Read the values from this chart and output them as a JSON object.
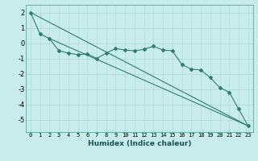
{
  "xlabel": "Humidex (Indice chaleur)",
  "ylabel": "",
  "xlim": [
    -0.5,
    23.5
  ],
  "ylim": [
    -5.8,
    2.5
  ],
  "yticks": [
    2,
    1,
    0,
    -1,
    -2,
    -3,
    -4,
    -5
  ],
  "xtick_labels": [
    "0",
    "1",
    "2",
    "3",
    "4",
    "5",
    "6",
    "7",
    "8",
    "9",
    "10",
    "11",
    "12",
    "13",
    "14",
    "15",
    "16",
    "17",
    "18",
    "19",
    "20",
    "21",
    "22",
    "23"
  ],
  "background_color": "#c8ecec",
  "grid_color": "#b0d8d8",
  "line_color": "#2e7d6e",
  "line1_x": [
    0,
    1,
    2,
    3,
    4,
    5,
    6,
    7,
    8,
    9,
    10,
    11,
    12,
    13,
    14,
    15,
    16,
    17,
    18,
    19,
    20,
    21,
    22,
    23
  ],
  "line1_y": [
    2.0,
    0.6,
    0.3,
    -0.5,
    -0.65,
    -0.75,
    -0.7,
    -1.0,
    -0.65,
    -0.35,
    -0.45,
    -0.5,
    -0.4,
    -0.2,
    -0.45,
    -0.5,
    -1.4,
    -1.7,
    -1.75,
    -2.25,
    -2.9,
    -3.2,
    -4.3,
    -5.4
  ],
  "line2_x": [
    0,
    23
  ],
  "line2_y": [
    2.0,
    -5.4
  ],
  "line3_x": [
    2,
    23
  ],
  "line3_y": [
    0.3,
    -5.4
  ],
  "xlabel_fontsize": 6.5,
  "xlabel_color": "#1a5050",
  "tick_fontsize": 5,
  "ytick_fontsize": 6
}
